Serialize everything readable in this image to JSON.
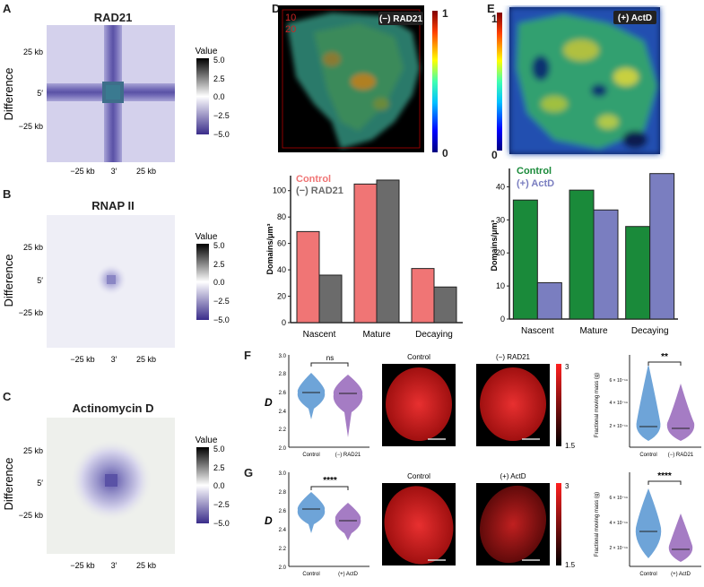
{
  "colors": {
    "heatmap_low": "#3a2d8a",
    "heatmap_mid": "#ffffff",
    "heatmap_high": "#000000",
    "control_red": "#f07575",
    "rad21_gray": "#6b6b6b",
    "control_green": "#1a8a3a",
    "actd_purple": "#7a7ec0",
    "violin_blue": "#6ea4d8",
    "violin_purple": "#a57cc4",
    "nucleus_red": "#e82020"
  },
  "panels": {
    "A": {
      "letter": "A",
      "title": "RAD21",
      "ylabel": "Difference",
      "ytick_labels": [
        "25 kb",
        "5′",
        "−25 kb"
      ],
      "xtick_labels": [
        "−25 kb",
        "3′",
        "25 kb"
      ],
      "colorbar_title": "Value",
      "colorbar_ticks": [
        "5.0",
        "2.5",
        "0.0",
        "−2.5",
        "−5.0"
      ]
    },
    "B": {
      "letter": "B",
      "title": "RNAP II",
      "ylabel": "Difference",
      "ytick_labels": [
        "25 kb",
        "5′",
        "−25 kb"
      ],
      "xtick_labels": [
        "−25 kb",
        "3′",
        "25 kb"
      ],
      "colorbar_title": "Value",
      "colorbar_ticks": [
        "5.0",
        "2.5",
        "0.0",
        "−2.5",
        "−5.0"
      ]
    },
    "C": {
      "letter": "C",
      "title": "Actinomycin D",
      "ylabel": "Difference",
      "ytick_labels": [
        "25 kb",
        "5′",
        "−25 kb"
      ],
      "xtick_labels": [
        "−25 kb",
        "3′",
        "25 kb"
      ],
      "colorbar_title": "Value",
      "colorbar_ticks": [
        "5.0",
        "2.5",
        "0.0",
        "−2.5",
        "−5.0"
      ]
    },
    "D": {
      "letter": "D",
      "image_label": "(−) RAD21",
      "colorbar_top": "1",
      "colorbar_bottom": "0"
    },
    "E": {
      "letter": "E",
      "image_label": "(+) ActD",
      "colorbar_top": "1",
      "colorbar_bottom": "0"
    },
    "F": {
      "letter": "F",
      "sig_label": "ns",
      "sig_label_right": "**",
      "img_labels": [
        "Control",
        "(−) RAD21"
      ],
      "scale_top": "3",
      "scale_bottom": "1.5",
      "d_label": "D",
      "right_ylabel": "Fractional moving mass (g)"
    },
    "G": {
      "letter": "G",
      "sig_label": "****",
      "sig_label_right": "****",
      "img_labels": [
        "Control",
        "(+) ActD"
      ],
      "scale_top": "3",
      "scale_bottom": "1.5",
      "d_label": "D",
      "right_ylabel": "Fractional moving mass (g)"
    }
  },
  "chart_data": [
    {
      "type": "bar",
      "panel": "D",
      "categories": [
        "Nascent",
        "Mature",
        "Decaying"
      ],
      "series": [
        {
          "name": "Control",
          "values": [
            69,
            105,
            41
          ]
        },
        {
          "name": "(−) RAD21",
          "values": [
            36,
            108,
            27
          ]
        }
      ],
      "ylabel": "Domains/μm³",
      "ylim": [
        0,
        110
      ],
      "yticks": [
        0,
        20,
        40,
        60,
        80,
        100
      ],
      "legend": "top-left"
    },
    {
      "type": "bar",
      "panel": "E",
      "categories": [
        "Nascent",
        "Mature",
        "Decaying"
      ],
      "series": [
        {
          "name": "Control",
          "values": [
            36,
            39,
            28
          ]
        },
        {
          "name": "(+) ActD",
          "values": [
            11,
            33,
            44
          ]
        }
      ],
      "ylabel": "Domains/μm³",
      "ylim": [
        0,
        45
      ],
      "yticks": [
        0,
        10,
        20,
        30,
        40
      ],
      "legend": "top-left"
    },
    {
      "type": "scatter",
      "panel": "F-left",
      "categories": [
        "Control",
        "(−) RAD21"
      ],
      "medians": [
        2.61,
        2.6
      ],
      "ylim": [
        2.0,
        3.0
      ],
      "yticks": [
        "2.0",
        "2.2",
        "2.4",
        "2.6",
        "2.8",
        "3.0"
      ]
    },
    {
      "type": "scatter",
      "panel": "F-right",
      "categories": [
        "Control",
        "(−) RAD21"
      ],
      "ytick_labels": [
        "6 × 10⁻¹⁹",
        "4 × 10⁻¹⁹",
        "2 × 10⁻¹⁹"
      ]
    },
    {
      "type": "scatter",
      "panel": "G-left",
      "categories": [
        "Control",
        "(+) ActD"
      ],
      "medians": [
        2.62,
        2.5
      ],
      "ylim": [
        2.0,
        3.0
      ],
      "yticks": [
        "2.0",
        "2.2",
        "2.4",
        "2.6",
        "2.8",
        "3.0"
      ]
    },
    {
      "type": "scatter",
      "panel": "G-right",
      "categories": [
        "Control",
        "(+) ActD"
      ],
      "ytick_labels": [
        "6 × 10⁻¹⁹",
        "4 × 10⁻¹⁹",
        "2 × 10⁻¹⁹"
      ]
    }
  ]
}
